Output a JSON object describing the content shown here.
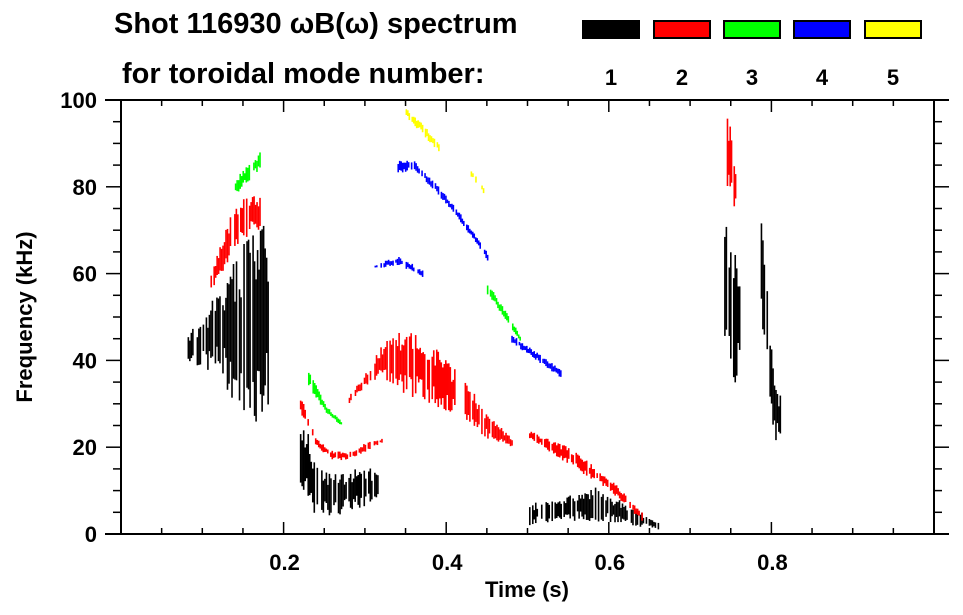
{
  "chart_data": {
    "type": "scatter",
    "title_line1": "Shot 116930 ωB(ω) spectrum",
    "title_line2": "for toroidal mode number:",
    "xlabel": "Time (s)",
    "ylabel": "Frequency (kHz)",
    "xlim": [
      0,
      1.0
    ],
    "ylim": [
      0,
      100
    ],
    "xticks": [
      0.2,
      0.4,
      0.6,
      0.8
    ],
    "xtick_labels": [
      "0.2",
      "0.4",
      "0.6",
      "0.8"
    ],
    "yticks": [
      0,
      20,
      40,
      60,
      80,
      100
    ],
    "ytick_labels": [
      "0",
      "20",
      "40",
      "60",
      "80",
      "100"
    ],
    "grid": false,
    "legend_placement": "top-right",
    "legend": [
      {
        "label": "1",
        "color": "#000000"
      },
      {
        "label": "2",
        "color": "#ff0000"
      },
      {
        "label": "3",
        "color": "#00ff00"
      },
      {
        "label": "4",
        "color": "#0000ff"
      },
      {
        "label": "5",
        "color": "#ffff00"
      }
    ],
    "series": [
      {
        "name": "1",
        "color": "#000000",
        "bands": [
          {
            "t": [
              0.08,
              0.1,
              0.12,
              0.14,
              0.16,
              0.18
            ],
            "f_low": [
              40,
              38,
              36,
              30,
              25,
              28
            ],
            "f_high": [
              46,
              50,
              58,
              64,
              70,
              72
            ]
          },
          {
            "t": [
              0.22,
              0.24,
              0.26,
              0.28,
              0.3,
              0.315
            ],
            "f_low": [
              8,
              4,
              4,
              5,
              6,
              8
            ],
            "f_high": [
              30,
              16,
              14,
              15,
              16,
              14
            ]
          },
          {
            "t": [
              0.5,
              0.54,
              0.58,
              0.62,
              0.66
            ],
            "f_low": [
              2,
              3,
              3,
              2,
              1
            ],
            "f_high": [
              7,
              8,
              11,
              7,
              3
            ]
          },
          {
            "t": [
              0.74,
              0.75,
              0.76
            ],
            "f_low": [
              36,
              34,
              36
            ],
            "f_high": [
              72,
              72,
              60
            ]
          },
          {
            "t": [
              0.785,
              0.8,
              0.81
            ],
            "f_low": [
              55,
              22,
              20
            ],
            "f_high": [
              78,
              42,
              32
            ]
          }
        ]
      },
      {
        "name": "2",
        "color": "#ff0000",
        "bands": [
          {
            "t": [
              0.11,
              0.13,
              0.15,
              0.17
            ],
            "f_low": [
              56,
              62,
              68,
              70
            ],
            "f_high": [
              60,
              72,
              78,
              78
            ]
          },
          {
            "t": [
              0.22,
              0.24,
              0.26,
              0.28,
              0.3,
              0.32
            ],
            "f_low": [
              28,
              20,
              17,
              17,
              19,
              21
            ],
            "f_high": [
              32,
              22,
              19,
              19,
              21,
              22
            ]
          },
          {
            "t": [
              0.28,
              0.3,
              0.32,
              0.35,
              0.38,
              0.42,
              0.45,
              0.48
            ],
            "f_low": [
              30,
              34,
              36,
              32,
              30,
              26,
              22,
              20
            ],
            "f_high": [
              32,
              37,
              44,
              48,
              44,
              36,
              28,
              22
            ]
          },
          {
            "t": [
              0.5,
              0.55,
              0.6,
              0.64
            ],
            "f_low": [
              22,
              16,
              10,
              3
            ],
            "f_high": [
              24,
              20,
              13,
              5
            ]
          },
          {
            "t": [
              0.745,
              0.75,
              0.755
            ],
            "f_low": [
              80,
              75,
              74
            ],
            "f_high": [
              98,
              92,
              84
            ]
          }
        ]
      },
      {
        "name": "3",
        "color": "#00ff00",
        "bands": [
          {
            "t": [
              0.14,
              0.16,
              0.17
            ],
            "f_low": [
              78,
              82,
              84
            ],
            "f_high": [
              82,
              86,
              88
            ]
          },
          {
            "t": [
              0.23,
              0.25,
              0.27
            ],
            "f_low": [
              34,
              28,
              25
            ],
            "f_high": [
              38,
              30,
              26
            ]
          },
          {
            "t": [
              0.45,
              0.47,
              0.49
            ],
            "f_low": [
              55,
              50,
              44
            ],
            "f_high": [
              58,
              52,
              46
            ]
          }
        ]
      },
      {
        "name": "4",
        "color": "#0000ff",
        "bands": [
          {
            "t": [
              0.34,
              0.36,
              0.39,
              0.42,
              0.45
            ],
            "f_low": [
              83,
              84,
              78,
              71,
              63
            ],
            "f_high": [
              86,
              86,
              80,
              73,
              65
            ]
          },
          {
            "t": [
              0.31,
              0.34,
              0.37
            ],
            "f_low": [
              61,
              62,
              59
            ],
            "f_high": [
              62,
              64,
              61
            ]
          },
          {
            "t": [
              0.48,
              0.51,
              0.54
            ],
            "f_low": [
              44,
              40,
              36
            ],
            "f_high": [
              46,
              42,
              38
            ]
          }
        ]
      },
      {
        "name": "5",
        "color": "#ffff00",
        "bands": [
          {
            "t": [
              0.35,
              0.37,
              0.39
            ],
            "f_low": [
              96,
              92,
              88
            ],
            "f_high": [
              98,
              95,
              90
            ]
          },
          {
            "t": [
              0.43,
              0.44,
              0.445
            ],
            "f_low": [
              82,
              80,
              78
            ],
            "f_high": [
              84,
              82,
              80
            ]
          }
        ]
      }
    ]
  }
}
